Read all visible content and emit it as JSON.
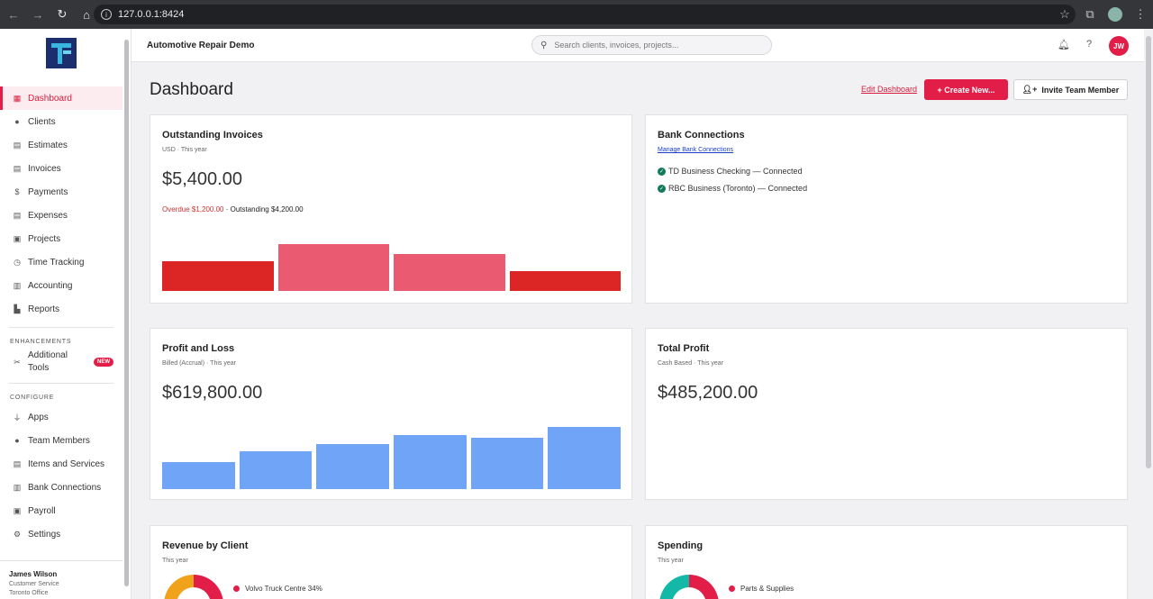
{
  "browser": {
    "url": "127.0.0.1:8424"
  },
  "app": {
    "company": "Automotive Repair Demo",
    "user_initials": "JW"
  },
  "search": {
    "placeholder": "Search clients, invoices, projects..."
  },
  "sidebar": {
    "main_items": [
      {
        "label": "Dashboard",
        "icon": "grid-icon",
        "glyph": "▦",
        "active": true
      },
      {
        "label": "Clients",
        "icon": "person-icon",
        "glyph": "●"
      },
      {
        "label": "Estimates",
        "icon": "document-icon",
        "glyph": "▤"
      },
      {
        "label": "Invoices",
        "icon": "invoice-icon",
        "glyph": "▤"
      },
      {
        "label": "Payments",
        "icon": "dollar-icon",
        "glyph": "$"
      },
      {
        "label": "Expenses",
        "icon": "receipt-icon",
        "glyph": "▤"
      },
      {
        "label": "Projects",
        "icon": "briefcase-icon",
        "glyph": "▣"
      },
      {
        "label": "Time Tracking",
        "icon": "clock-icon",
        "glyph": "◷"
      },
      {
        "label": "Accounting",
        "icon": "calculator-icon",
        "glyph": "▥"
      },
      {
        "label": "Reports",
        "icon": "chart-icon",
        "glyph": "▙"
      }
    ],
    "enhancements_label": "ENHANCEMENTS",
    "additional_tools": {
      "label_line1": "Additional",
      "label_line2": "Tools",
      "badge": "NEW"
    },
    "configure_label": "CONFIGURE",
    "configure_items": [
      {
        "label": "Apps",
        "icon": "plug-icon",
        "glyph": "⏚"
      },
      {
        "label": "Team Members",
        "icon": "team-icon",
        "glyph": "●"
      },
      {
        "label": "Items and Services",
        "icon": "list-icon",
        "glyph": "▤"
      },
      {
        "label": "Bank Connections",
        "icon": "bank-icon",
        "glyph": "▥"
      },
      {
        "label": "Payroll",
        "icon": "payroll-icon",
        "glyph": "▣"
      },
      {
        "label": "Settings",
        "icon": "gear-icon",
        "glyph": "⚙"
      }
    ],
    "user": {
      "name": "James Wilson",
      "line1": "Customer Service",
      "line2": "Toronto Office"
    }
  },
  "header": {
    "title": "Dashboard",
    "edit_label": "Edit Dashboard",
    "create_label": "+ Create New...",
    "invite_label": "Invite Team Member"
  },
  "cards": {
    "outstanding": {
      "title": "Outstanding Invoices",
      "subtitle": "USD · This year",
      "amount": "$5,400.00",
      "overdue": "Overdue $1,200.00",
      "separator": " · ",
      "outstanding": "Outstanding $4,200.00"
    },
    "bank": {
      "title": "Bank Connections",
      "manage_link": "Manage Bank Connections",
      "connections": [
        "TD Business Checking — Connected",
        "RBC Business (Toronto) — Connected"
      ]
    },
    "pnl": {
      "title": "Profit and Loss",
      "subtitle": "Billed (Accrual) · This year",
      "amount": "$619,800.00"
    },
    "total_profit": {
      "title": "Total Profit",
      "subtitle": "Cash Based · This year",
      "amount": "$485,200.00"
    },
    "revenue": {
      "title": "Revenue by Client",
      "subtitle": "This year",
      "legend": "Volvo Truck Centre 34%"
    },
    "spending": {
      "title": "Spending",
      "subtitle": "This year",
      "legend": "Parts & Supplies"
    }
  },
  "chart_data": [
    {
      "type": "bar",
      "values": [
        0.47,
        0.74,
        0.58,
        0.31
      ],
      "colors": [
        "#dc2626",
        "#ea5a70",
        "#ea5a70",
        "#dc2626"
      ]
    },
    {
      "type": "bar",
      "values": [
        0.39,
        0.54,
        0.64,
        0.77,
        0.73,
        0.89
      ],
      "colors": [
        "#6fa4f7"
      ]
    },
    {
      "type": "pie",
      "colors": [
        "#f0a21b",
        "#e11d48"
      ]
    },
    {
      "type": "pie",
      "colors": [
        "#14b8a6",
        "#e11d48"
      ]
    }
  ],
  "colors": {
    "accent": "#e11d48",
    "success": "#13795b"
  }
}
